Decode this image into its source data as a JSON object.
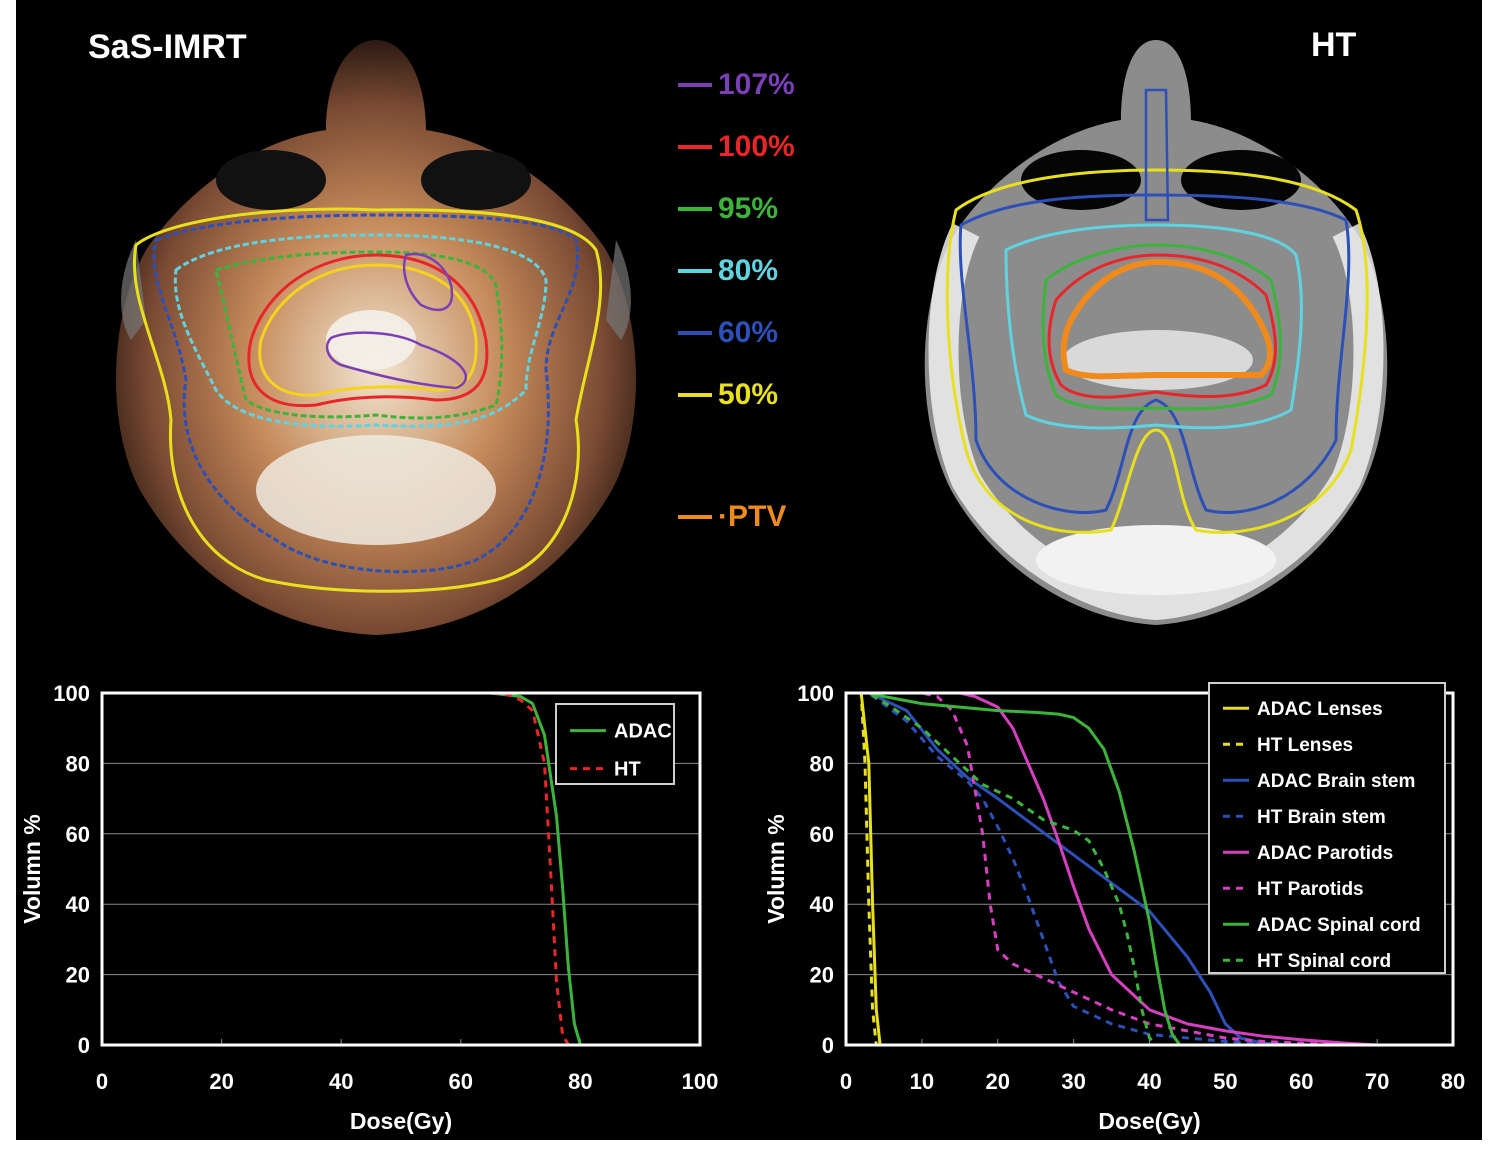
{
  "panels": {
    "left_title": "SaS-IMRT",
    "right_title": "HT"
  },
  "isodose_legend": [
    {
      "label": "107%",
      "color": "#7b3fb5"
    },
    {
      "label": "100%",
      "color": "#e8262a"
    },
    {
      "label": "95%",
      "color": "#3cb43c"
    },
    {
      "label": "80%",
      "color": "#5fd3e0"
    },
    {
      "label": "60%",
      "color": "#2d4fb8"
    },
    {
      "label": "50%",
      "color": "#e8e01c"
    },
    {
      "label": "·PTV",
      "color": "#f08a1c"
    }
  ],
  "chart_data": [
    {
      "type": "line",
      "xlabel": "Dose(Gy)",
      "ylabel": "Volumn %",
      "xlim": [
        0,
        100
      ],
      "ylim": [
        0,
        100
      ],
      "xticks": [
        "0",
        "20",
        "40",
        "60",
        "80",
        "100"
      ],
      "yticks": [
        "0",
        "20",
        "40",
        "60",
        "80",
        "100"
      ],
      "grid": true,
      "legend_position": "top-right",
      "series": [
        {
          "name": "ADAC",
          "color": "#3cb43c",
          "dash": "solid",
          "x": [
            0,
            65,
            70,
            72,
            74,
            76,
            77,
            78,
            79,
            80,
            86
          ],
          "y": [
            100,
            100,
            99,
            97,
            88,
            65,
            45,
            22,
            6,
            0,
            0
          ]
        },
        {
          "name": "HT",
          "color": "#e8262a",
          "dash": "dashed",
          "x": [
            0,
            65,
            68,
            70,
            72,
            74,
            75,
            76,
            77,
            78
          ],
          "y": [
            100,
            100,
            99.5,
            98,
            95,
            80,
            50,
            18,
            3,
            0
          ]
        }
      ]
    },
    {
      "type": "line",
      "xlabel": "Dose(Gy)",
      "ylabel": "Volumn %",
      "xlim": [
        0,
        80
      ],
      "ylim": [
        0,
        100
      ],
      "xticks": [
        "0",
        "10",
        "20",
        "30",
        "40",
        "50",
        "60",
        "70",
        "80"
      ],
      "yticks": [
        "0",
        "20",
        "40",
        "60",
        "80",
        "100"
      ],
      "grid": true,
      "legend_position": "top-right",
      "series": [
        {
          "name": "ADAC Lenses",
          "color": "#e8e01c",
          "dash": "solid",
          "x": [
            0,
            2,
            3,
            3.5,
            4,
            4.5,
            80
          ],
          "y": [
            100,
            100,
            80,
            40,
            10,
            0,
            0
          ]
        },
        {
          "name": "HT Lenses",
          "color": "#e8e01c",
          "dash": "dashed",
          "x": [
            0,
            2,
            2.5,
            3,
            3.5,
            4,
            80
          ],
          "y": [
            100,
            100,
            80,
            40,
            10,
            0,
            0
          ]
        },
        {
          "name": "ADAC Brain stem",
          "color": "#2d4fb8",
          "dash": "solid",
          "x": [
            0,
            3,
            8,
            12,
            16,
            20,
            25,
            30,
            35,
            40,
            45,
            48,
            50,
            52,
            55,
            60
          ],
          "y": [
            100,
            100,
            95,
            84,
            76,
            70,
            62,
            54,
            46,
            38,
            25,
            15,
            6,
            2,
            0.5,
            0
          ]
        },
        {
          "name": "HT Brain stem",
          "color": "#2d4fb8",
          "dash": "dashed",
          "x": [
            0,
            3,
            8,
            12,
            16,
            18,
            20,
            22,
            24,
            26,
            28,
            30,
            35,
            40,
            50,
            60
          ],
          "y": [
            100,
            100,
            92,
            82,
            75,
            70,
            62,
            53,
            42,
            30,
            18,
            11,
            6,
            3,
            1,
            0
          ]
        },
        {
          "name": "ADAC Parotids",
          "color": "#d63fc0",
          "dash": "solid",
          "x": [
            0,
            15,
            17,
            20,
            22,
            24,
            26,
            28,
            30,
            32,
            35,
            40,
            45,
            50,
            55,
            60,
            66,
            70
          ],
          "y": [
            100,
            100,
            99,
            96,
            90,
            80,
            70,
            58,
            45,
            33,
            20,
            10,
            6,
            4,
            2.5,
            1.5,
            0.5,
            0
          ]
        },
        {
          "name": "HT Parotids",
          "color": "#d63fc0",
          "dash": "dashed",
          "x": [
            0,
            10,
            12,
            14,
            16,
            18,
            19,
            20,
            22,
            26,
            30,
            35,
            40,
            45,
            50,
            55,
            60,
            65
          ],
          "y": [
            100,
            100,
            99,
            95,
            85,
            60,
            40,
            27,
            23,
            19,
            15,
            10,
            6,
            4,
            2,
            1,
            0.5,
            0
          ]
        },
        {
          "name": "ADAC Spinal cord",
          "color": "#3cb43c",
          "dash": "solid",
          "x": [
            0,
            3,
            5,
            10,
            15,
            20,
            25,
            28,
            30,
            32,
            34,
            36,
            38,
            40,
            41,
            42,
            43,
            44,
            80
          ],
          "y": [
            100,
            100,
            99,
            97,
            96,
            95,
            94.5,
            94,
            93,
            90,
            84,
            72,
            55,
            35,
            22,
            10,
            3,
            0,
            0
          ]
        },
        {
          "name": "HT Spinal cord",
          "color": "#3cb43c",
          "dash": "dashed",
          "x": [
            0,
            3,
            6,
            10,
            14,
            18,
            22,
            26,
            30,
            32,
            34,
            36,
            37,
            38,
            39,
            40,
            41,
            80
          ],
          "y": [
            100,
            100,
            96,
            90,
            82,
            74,
            70,
            64,
            61,
            58,
            50,
            40,
            32,
            22,
            10,
            2,
            0,
            0
          ]
        }
      ]
    }
  ]
}
